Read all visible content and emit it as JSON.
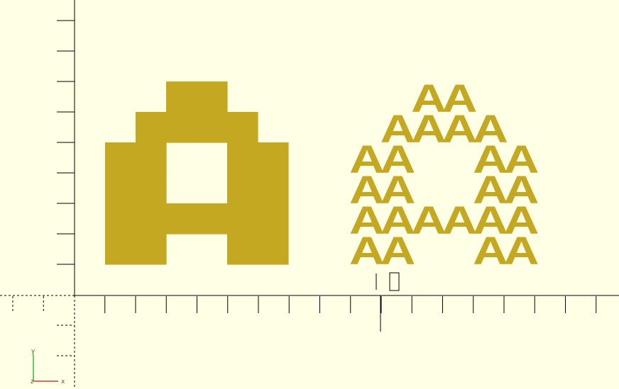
{
  "viewport": {
    "background_color": "#ffffe5",
    "model_color": "#c4a822",
    "axis_color": "#000000",
    "gizmo_colors": {
      "x": "#d43c3c",
      "y": "#3cb43c",
      "z": "#2f2fd4"
    }
  },
  "models": {
    "pixel_letter": {
      "grid_rows": [
        "..##..",
        ".####.",
        "##..##",
        "##..##",
        "######",
        "##..##"
      ]
    },
    "letter_tiles": {
      "glyph": "A",
      "grid_rows": [
        "..##..",
        ".####.",
        "##..##",
        "##..##",
        "######",
        "##..##"
      ]
    }
  },
  "axes_gizmo": {
    "x_label": "x",
    "y_label": "y",
    "z_label": "z"
  }
}
